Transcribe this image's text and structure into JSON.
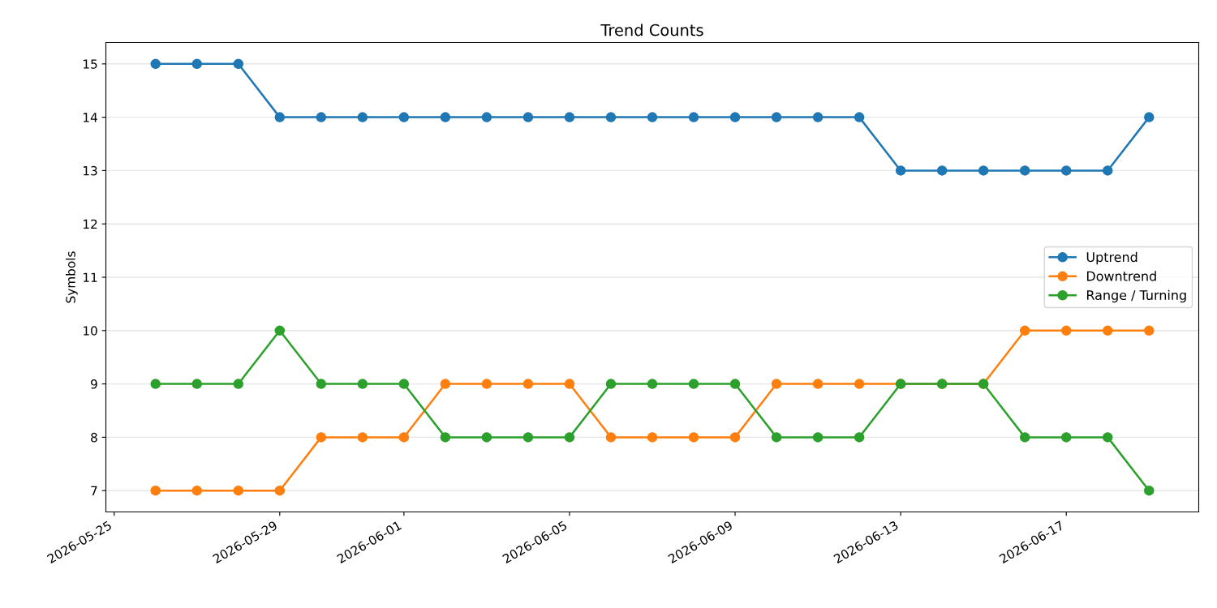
{
  "chart_data": {
    "type": "line",
    "title": "Trend Counts",
    "ylabel": "Symbols",
    "x": [
      "2026-05-26",
      "2026-05-27",
      "2026-05-28",
      "2026-05-29",
      "2026-05-30",
      "2026-05-31",
      "2026-06-01",
      "2026-06-02",
      "2026-06-03",
      "2026-06-04",
      "2026-06-05",
      "2026-06-06",
      "2026-06-07",
      "2026-06-08",
      "2026-06-09",
      "2026-06-10",
      "2026-06-11",
      "2026-06-12",
      "2026-06-13",
      "2026-06-14",
      "2026-06-15",
      "2026-06-16",
      "2026-06-17",
      "2026-06-18",
      "2026-06-19"
    ],
    "series": [
      {
        "name": "Uptrend",
        "color": "#1f77b4",
        "values": [
          15,
          15,
          15,
          14,
          14,
          14,
          14,
          14,
          14,
          14,
          14,
          14,
          14,
          14,
          14,
          14,
          14,
          14,
          13,
          13,
          13,
          13,
          13,
          13,
          14
        ]
      },
      {
        "name": "Downtrend",
        "color": "#ff7f0e",
        "values": [
          7,
          7,
          7,
          7,
          8,
          8,
          8,
          9,
          9,
          9,
          9,
          8,
          8,
          8,
          8,
          9,
          9,
          9,
          9,
          9,
          9,
          10,
          10,
          10,
          10
        ]
      },
      {
        "name": "Range / Turning",
        "color": "#2ca02c",
        "values": [
          9,
          9,
          9,
          10,
          9,
          9,
          9,
          8,
          8,
          8,
          8,
          9,
          9,
          9,
          9,
          8,
          8,
          8,
          9,
          9,
          9,
          8,
          8,
          8,
          7
        ]
      }
    ],
    "xlim": [
      "2026-05-24T19:12",
      "2026-06-20T04:48"
    ],
    "xticks": [
      "2026-05-25",
      "2026-05-29",
      "2026-06-01",
      "2026-06-05",
      "2026-06-09",
      "2026-06-13",
      "2026-06-17"
    ],
    "ylim": [
      6.6,
      15.4
    ],
    "yticks": [
      7,
      8,
      9,
      10,
      11,
      12,
      13,
      14,
      15
    ],
    "grid": "y",
    "legend": "center right",
    "marker": "circle",
    "line_style": "solid"
  }
}
